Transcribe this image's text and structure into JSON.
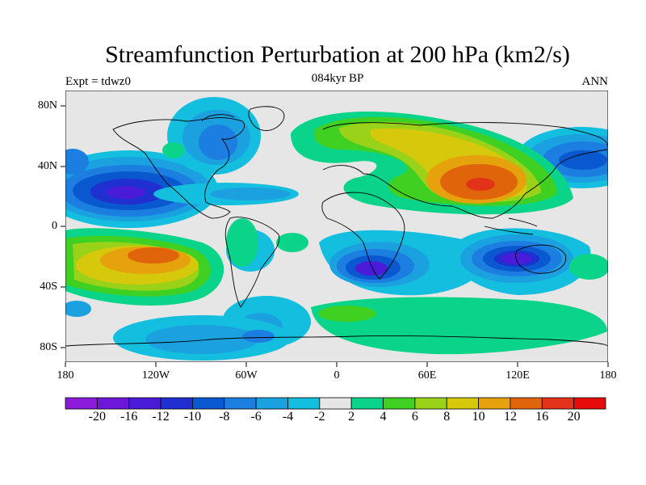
{
  "title": "Streamfunction Perturbation at 200 hPa (km2/s)",
  "subtitle_left": "Expt = tdwz0",
  "subtitle_center": "084kyr BP",
  "subtitle_right": "ANN",
  "map": {
    "projection": "cylindrical equidistant",
    "lat_range": [
      -90,
      90
    ],
    "lon_range": [
      -180,
      180
    ],
    "lat_ticks": [
      "80N",
      "40N",
      "0",
      "40S",
      "80S"
    ],
    "lon_ticks": [
      "180",
      "120W",
      "60W",
      "0",
      "60E",
      "120E",
      "180"
    ],
    "fill": "contours"
  },
  "colorbar": {
    "levels": [
      "-20",
      "-16",
      "-12",
      "-10",
      "-8",
      "-6",
      "-4",
      "-2",
      "2",
      "4",
      "6",
      "8",
      "10",
      "12",
      "16",
      "20"
    ],
    "colors": [
      "#8c1ad9",
      "#6d17d9",
      "#4a1bd8",
      "#1f2fd0",
      "#0a58d0",
      "#1c7ee0",
      "#1ba0e0",
      "#13bede",
      "#e6e6e6",
      "#0ad48a",
      "#3fd021",
      "#9ad21a",
      "#d6c80a",
      "#e5a20c",
      "#e0640a",
      "#e2331a",
      "#e60c0c"
    ]
  }
}
